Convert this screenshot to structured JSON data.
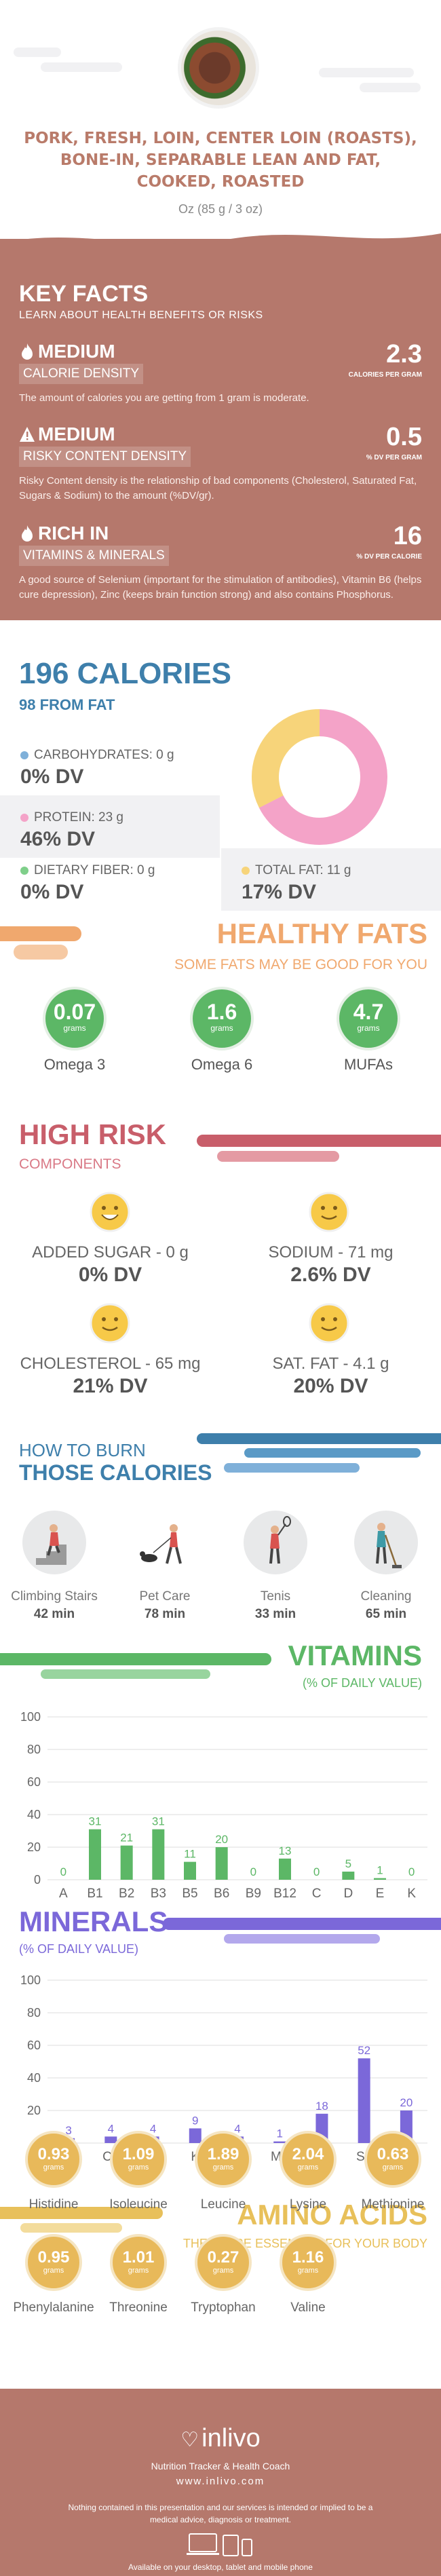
{
  "header": {
    "food_name": "PORK, FRESH, LOIN, CENTER LOIN (ROASTS), BONE-IN, SEPARABLE LEAN AND FAT, COOKED, ROASTED",
    "serving": "Oz (85 g / 3 oz)"
  },
  "key_facts": {
    "title": "KEY FACTS",
    "subtitle": "LEARN ABOUT HEALTH BENEFITS OR RISKS",
    "items": [
      {
        "level": "MEDIUM",
        "label": "CALORIE DENSITY",
        "value": "2.3",
        "unit": "CALORIES PER GRAM",
        "description": "The amount of calories you are getting from 1 gram is moderate.",
        "icon": "flame-icon"
      },
      {
        "level": "MEDIUM",
        "label": "RISKY CONTENT DENSITY",
        "value": "0.5",
        "unit": "% DV PER GRAM",
        "description": "Risky Content density is the relationship of bad components (Cholesterol, Saturated Fat, Sugars & Sodium) to the amount (%DV/gr).",
        "icon": "warning-icon"
      },
      {
        "level": "RICH  IN",
        "label": "VITAMINS & MINERALS",
        "value": "16",
        "unit": "% DV PER CALORIE",
        "description": "A good source of Selenium (important for the stimulation of antibodies), Vitamin B6 (helps cure depression), Zinc (keeps brain function strong) and also contains Phosphorus.",
        "icon": "flame-icon"
      }
    ]
  },
  "calories": {
    "title": "196 CALORIES",
    "from_fat": "98 FROM FAT",
    "nutrients": [
      {
        "label": "CARBOHYDRATES: 0 g",
        "dv": "0% DV",
        "color": "#7fb0d9"
      },
      {
        "label": "PROTEIN: 23 g",
        "dv": "46% DV",
        "color": "#f4a3c8"
      },
      {
        "label": "DIETARY FIBER: 0 g",
        "dv": "0% DV",
        "color": "#7fcf8a"
      },
      {
        "label": "TOTAL FAT: 11 g",
        "dv": "17% DV",
        "color": "#f7d47a"
      }
    ],
    "donut": {
      "protein_fraction": 0.675,
      "fat_fraction": 0.325,
      "protein_color": "#f4a3c8",
      "fat_color": "#f7d47a"
    }
  },
  "healthy_fats": {
    "title": "HEALTHY FATS",
    "subtitle": "SOME FATS MAY BE GOOD FOR YOU",
    "items": [
      {
        "value": "0.07",
        "unit": "grams",
        "name": "Omega 3"
      },
      {
        "value": "1.6",
        "unit": "grams",
        "name": "Omega 6"
      },
      {
        "value": "4.7",
        "unit": "grams",
        "name": "MUFAs"
      }
    ]
  },
  "high_risk": {
    "title": "HIGH RISK",
    "subtitle": "COMPONENTS",
    "items": [
      {
        "name": "ADDED SUGAR - 0 g",
        "dv": "0% DV"
      },
      {
        "name": "SODIUM - 71 mg",
        "dv": "2.6% DV"
      },
      {
        "name": "CHOLESTEROL - 65 mg",
        "dv": "21% DV"
      },
      {
        "name": "SAT. FAT - 4.1 g",
        "dv": "20% DV"
      }
    ]
  },
  "burn": {
    "title_line1": "HOW TO BURN",
    "title_line2": "THOSE CALORIES",
    "activities": [
      {
        "name": "Climbing Stairs",
        "minutes": "42 min",
        "icon": "stairs-icon"
      },
      {
        "name": "Pet Care",
        "minutes": "78 min",
        "icon": "dog-walk-icon"
      },
      {
        "name": "Tenis",
        "minutes": "33 min",
        "icon": "tennis-icon"
      },
      {
        "name": "Cleaning",
        "minutes": "65 min",
        "icon": "mop-icon"
      }
    ]
  },
  "vitamins": {
    "title": "VITAMINS",
    "subtitle": "(% OF DAILY VALUE)",
    "color": "#5cb766",
    "chart_data": {
      "type": "bar",
      "categories": [
        "A",
        "B1",
        "B2",
        "B3",
        "B5",
        "B6",
        "B9",
        "B12",
        "C",
        "D",
        "E",
        "K"
      ],
      "values": [
        0,
        31,
        21,
        31,
        11,
        20,
        0,
        13,
        0,
        5,
        1,
        0
      ],
      "ylim": [
        0,
        100
      ],
      "yticks": [
        0,
        20,
        40,
        60,
        80,
        100
      ]
    }
  },
  "minerals": {
    "title": "MINERALS",
    "subtitle": "(% OF DAILY VALUE)",
    "color": "#7b68d9",
    "chart_data": {
      "type": "bar",
      "categories": [
        "Ca",
        "Cu",
        "Fe",
        "K",
        "Mg",
        "Mn",
        "P",
        "Se",
        "Zn"
      ],
      "values": [
        3,
        4,
        4,
        9,
        4,
        1,
        18,
        52,
        20
      ],
      "ylim": [
        0,
        100
      ],
      "yticks": [
        0,
        20,
        40,
        60,
        80,
        100
      ]
    }
  },
  "amino_acids": {
    "title": "AMINO ACIDS",
    "subtitle": "THESE ARE ESSENTIAL FOR YOUR BODY",
    "unit": "grams",
    "items": [
      {
        "value": "0.93",
        "name": "Histidine"
      },
      {
        "value": "1.09",
        "name": "Isoleucine"
      },
      {
        "value": "1.89",
        "name": "Leucine"
      },
      {
        "value": "2.04",
        "name": "Lysine"
      },
      {
        "value": "0.63",
        "name": "Methionine"
      },
      {
        "value": "0.95",
        "name": "Phenylalanine"
      },
      {
        "value": "1.01",
        "name": "Threonine"
      },
      {
        "value": "0.27",
        "name": "Tryptophan"
      },
      {
        "value": "1.16",
        "name": "Valine"
      }
    ]
  },
  "footer": {
    "brand": "inlivo",
    "tagline": "Nutrition Tracker & Health Coach",
    "url": "www.inlivo.com",
    "disclaimer": "Nothing contained in this presentation and our services is intended or implied to be a medical advice, diagnosis or treatment.",
    "available": "Available on your desktop, tablet and mobile phone"
  }
}
